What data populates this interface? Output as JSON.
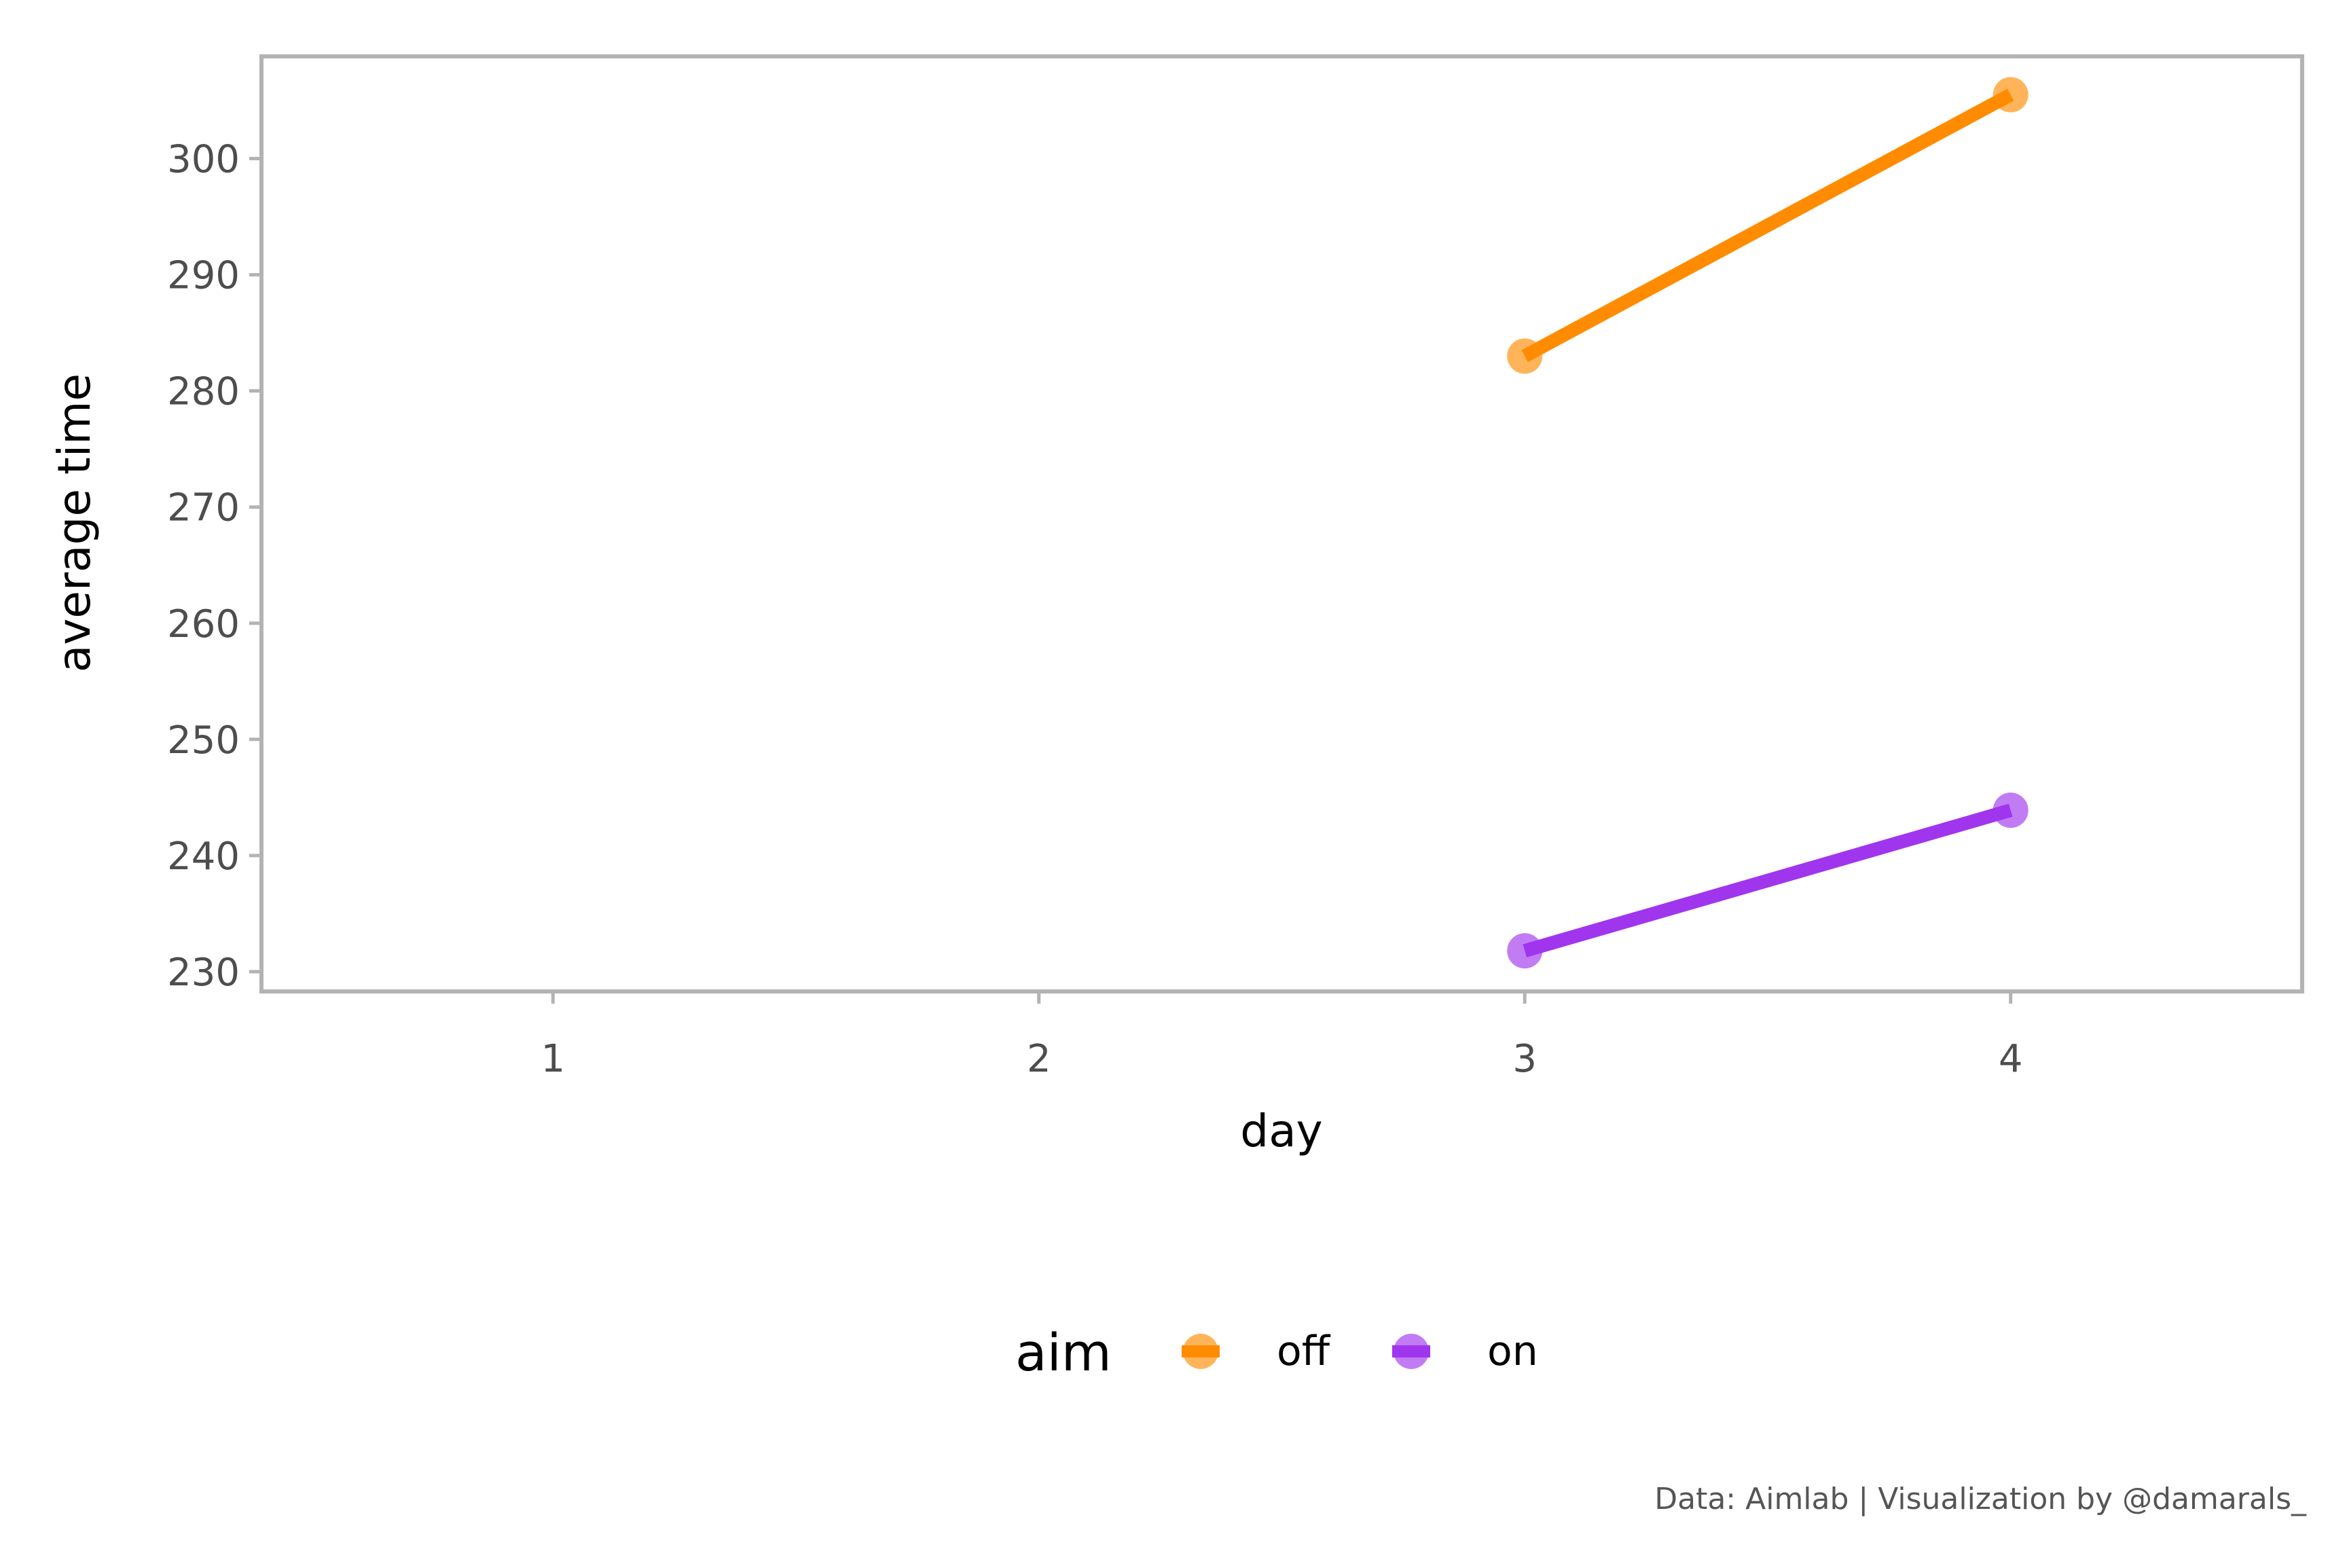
{
  "chart_data": {
    "type": "line",
    "title": "",
    "xlabel": "day",
    "ylabel": "average time",
    "x_ticks": [
      1,
      2,
      3,
      4
    ],
    "y_ticks": [
      230,
      240,
      250,
      260,
      270,
      280,
      290,
      300
    ],
    "xlim": [
      0.4,
      4.6
    ],
    "ylim": [
      228.3,
      308.8
    ],
    "grid": false,
    "legend": {
      "title": "aim",
      "placement": "bottom"
    },
    "series": [
      {
        "name": "off",
        "color": "#ff8c00",
        "x": [
          3,
          4
        ],
        "y": [
          283.0,
          305.5
        ]
      },
      {
        "name": "on",
        "color": "#a035ee",
        "x": [
          3,
          4
        ],
        "y": [
          231.8,
          243.9
        ]
      }
    ],
    "caption": "Data: Aimlab | Visualization by @damarals_"
  }
}
